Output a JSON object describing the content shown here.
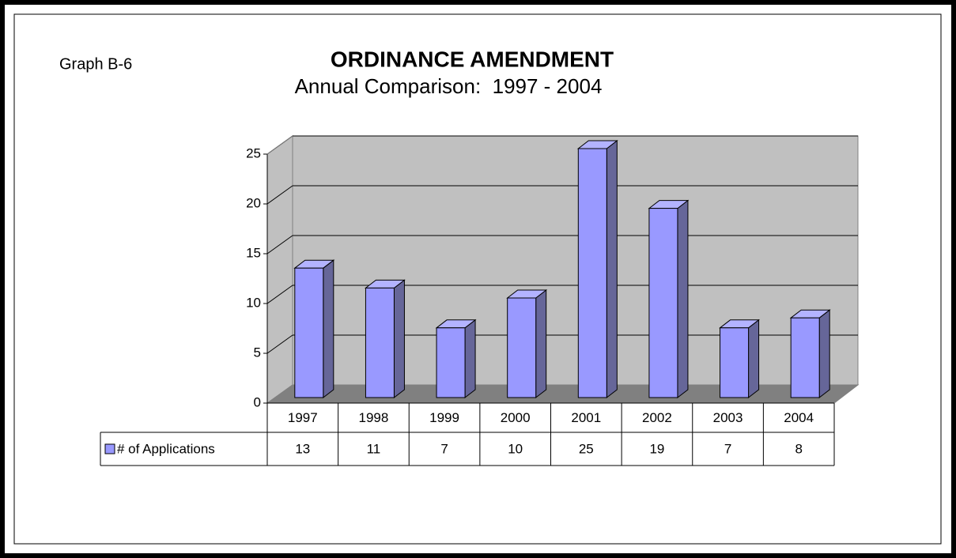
{
  "chart_data": {
    "type": "bar",
    "label": "Graph B-6",
    "title": "ORDINANCE AMENDMENT",
    "subtitle": "Annual Comparison:  1997 - 2004",
    "categories": [
      "1997",
      "1998",
      "1999",
      "2000",
      "2001",
      "2002",
      "2003",
      "2004"
    ],
    "series": [
      {
        "name": "# of Applications",
        "color": "#9999ff",
        "values": [
          13,
          11,
          7,
          10,
          25,
          19,
          7,
          8
        ]
      }
    ],
    "ylim": [
      0,
      25
    ],
    "yticks": [
      0,
      5,
      10,
      15,
      20,
      25
    ],
    "grid": true,
    "data_table": true
  }
}
